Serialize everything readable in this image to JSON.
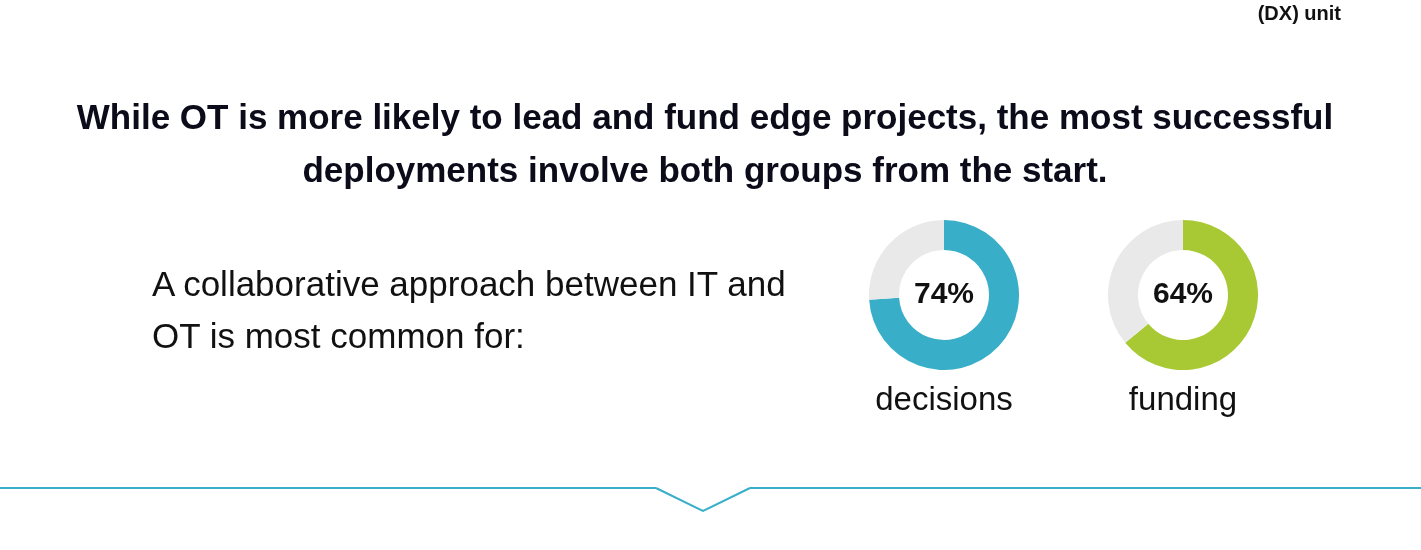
{
  "chart_data": [
    {
      "type": "other",
      "title": "While OT is more likely to lead and fund edge projects, the most successful deployments involve both groups from the start.",
      "subtitle": "A collaborative approach between IT and OT is most common for:",
      "annotations": [
        "(DX) unit"
      ]
    },
    {
      "type": "donut",
      "categories": [
        null,
        null
      ],
      "values": [
        74,
        26
      ],
      "colors": [
        "#38aec8",
        "#e9e9e9"
      ],
      "value_labels": [
        "74%",
        null
      ],
      "xlabel": "decisions"
    },
    {
      "type": "donut",
      "categories": [
        null,
        null
      ],
      "values": [
        64,
        36
      ],
      "colors": [
        "#a9c934",
        "#e9e9e9"
      ],
      "value_labels": [
        "64%",
        null
      ],
      "xlabel": "funding"
    }
  ]
}
